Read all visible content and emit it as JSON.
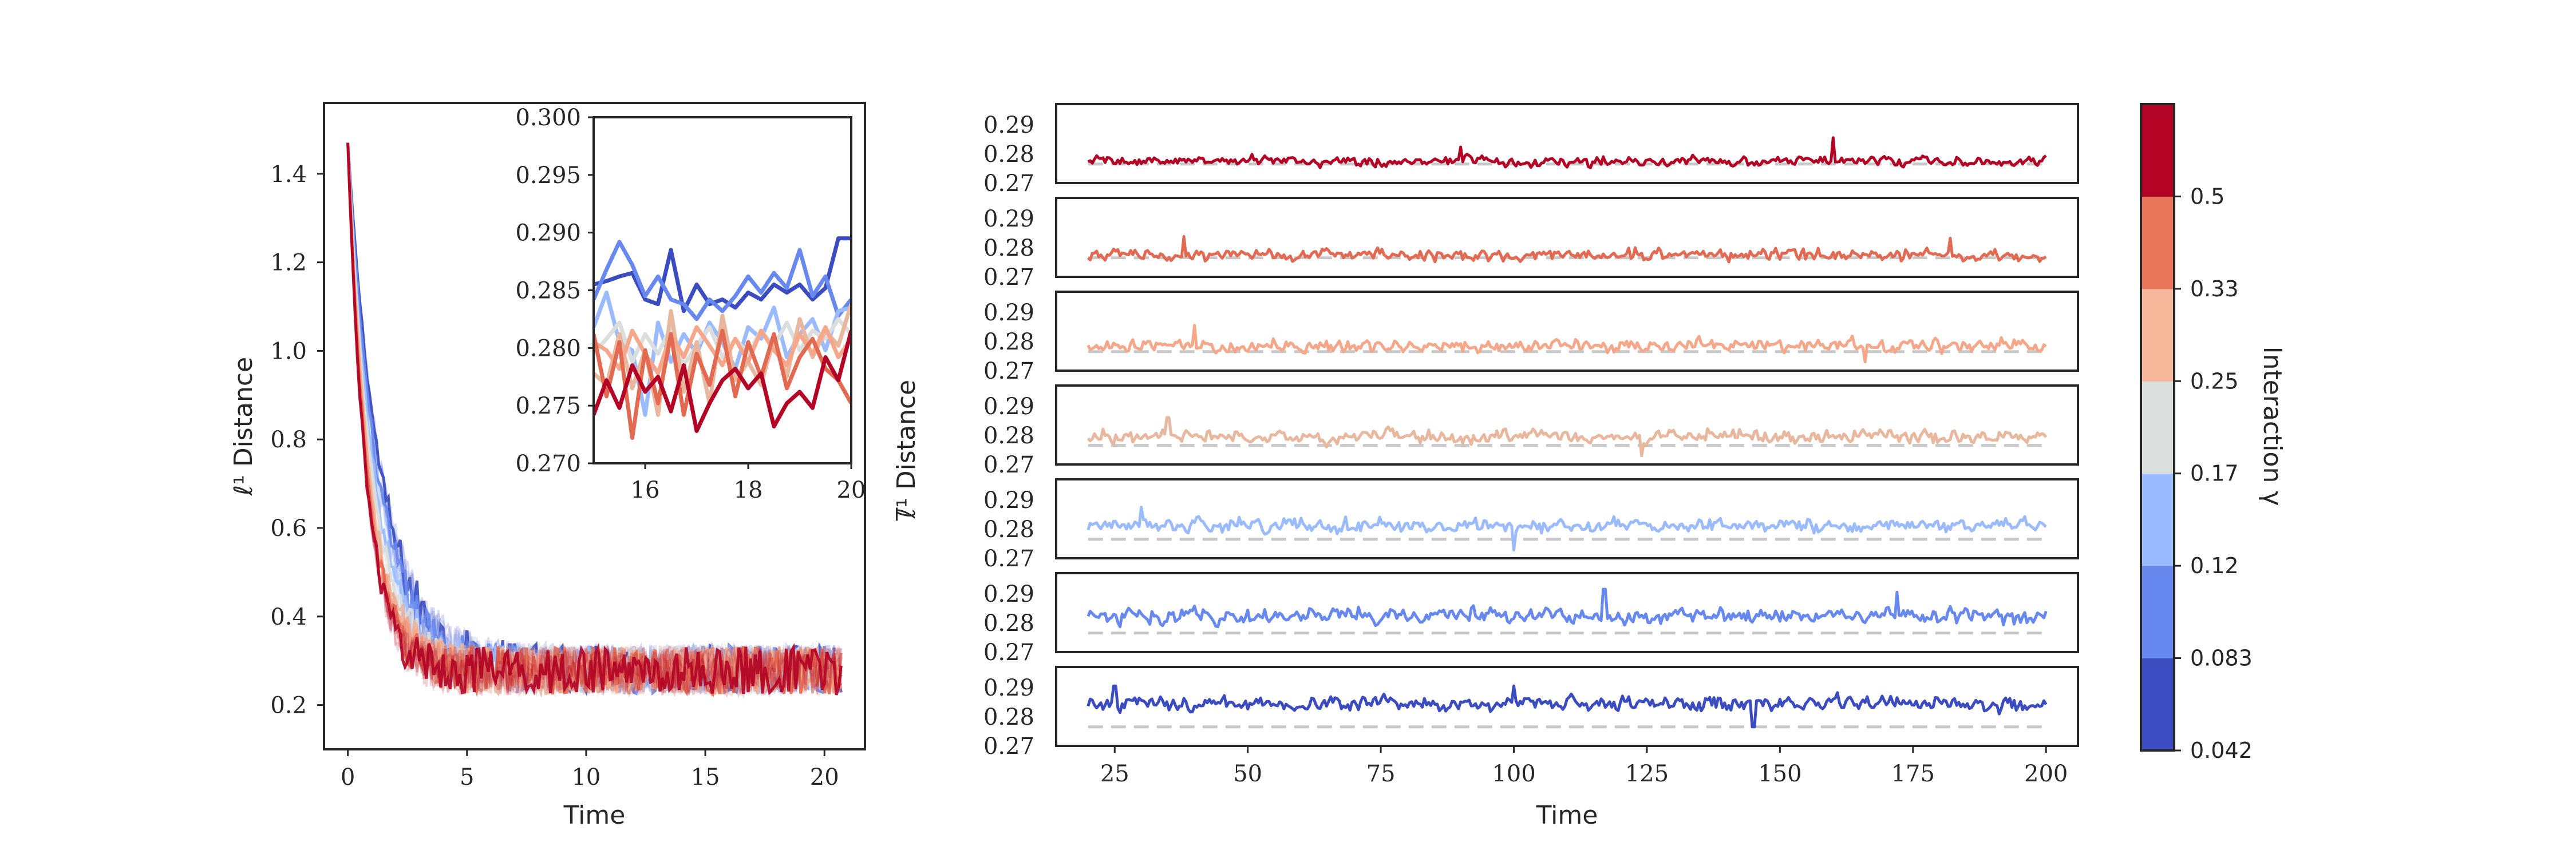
{
  "chart_data": [
    {
      "id": "main",
      "type": "line",
      "xlabel": "Time",
      "ylabel": "ℓ¹ Distance",
      "xlim": [
        -1,
        21.7
      ],
      "ylim": [
        0.1,
        1.56
      ],
      "xticks": [
        0,
        5,
        10,
        15,
        20
      ],
      "xtick_labels": [
        "0",
        "5",
        "10",
        "15",
        "20"
      ],
      "yticks": [
        0.2,
        0.4,
        0.6,
        0.8,
        1.0,
        1.2,
        1.4
      ],
      "ytick_labels": [
        "0.2",
        "0.4",
        "0.6",
        "0.8",
        "1.0",
        "1.2",
        "1.4"
      ],
      "grid": false,
      "series": [
        {
          "color": "#3b4cc0",
          "start": 1.47,
          "decay": 1.35,
          "plateau": 0.282,
          "t_end": 20.8
        },
        {
          "color": "#6788ee",
          "start": 1.47,
          "decay": 1.2,
          "plateau": 0.281,
          "t_end": 20.8
        },
        {
          "color": "#9abbff",
          "start": 1.47,
          "decay": 1.05,
          "plateau": 0.28,
          "t_end": 20.8
        },
        {
          "color": "#dcdddd",
          "start": 1.47,
          "decay": 0.95,
          "plateau": 0.279,
          "t_end": 20.8
        },
        {
          "color": "#e8b79d",
          "start": 1.47,
          "decay": 0.85,
          "plateau": 0.279,
          "t_end": 20.8
        },
        {
          "color": "#f7a789",
          "start": 1.47,
          "decay": 0.8,
          "plateau": 0.278,
          "t_end": 20.8
        },
        {
          "color": "#e26952",
          "start": 1.47,
          "decay": 0.75,
          "plateau": 0.278,
          "t_end": 20.8
        },
        {
          "color": "#b40426",
          "start": 1.47,
          "decay": 0.7,
          "plateau": 0.277,
          "t_end": 20.8
        }
      ]
    },
    {
      "id": "inset",
      "type": "line",
      "xlim": [
        15,
        20
      ],
      "ylim": [
        0.27,
        0.3
      ],
      "xticks": [
        16,
        18,
        20
      ],
      "xtick_labels": [
        "16",
        "18",
        "20"
      ],
      "yticks": [
        0.27,
        0.275,
        0.28,
        0.285,
        0.29,
        0.295,
        0.3
      ],
      "ytick_labels": [
        "0.270",
        "0.275",
        "0.280",
        "0.285",
        "0.290",
        "0.295",
        "0.300"
      ],
      "x": [
        15.0,
        15.25,
        15.5,
        15.75,
        16.0,
        16.25,
        16.5,
        16.75,
        17.0,
        17.25,
        17.5,
        17.75,
        18.0,
        18.25,
        18.5,
        18.75,
        19.0,
        19.25,
        19.5,
        19.75,
        20.0
      ],
      "series": [
        {
          "color": "#3b4cc0",
          "values": [
            0.2855,
            0.2858,
            0.2862,
            0.2865,
            0.2842,
            0.2838,
            0.2885,
            0.2832,
            0.2855,
            0.2838,
            0.2842,
            0.2835,
            0.2848,
            0.2842,
            0.2855,
            0.2848,
            0.2855,
            0.2842,
            0.2852,
            0.2895,
            0.2895
          ]
        },
        {
          "color": "#6788ee",
          "values": [
            0.2842,
            0.2868,
            0.2892,
            0.2872,
            0.2845,
            0.2862,
            0.2842,
            0.2838,
            0.2825,
            0.2842,
            0.2832,
            0.2845,
            0.2862,
            0.2848,
            0.2865,
            0.2852,
            0.2885,
            0.2845,
            0.2862,
            0.2828,
            0.2842
          ]
        },
        {
          "color": "#9abbff",
          "values": [
            0.2818,
            0.2848,
            0.2805,
            0.2798,
            0.2742,
            0.2822,
            0.2788,
            0.2812,
            0.2795,
            0.2822,
            0.2805,
            0.2782,
            0.2818,
            0.2808,
            0.2835,
            0.2792,
            0.2812,
            0.2825,
            0.2798,
            0.2832,
            0.2835
          ]
        },
        {
          "color": "#dcdddd",
          "values": [
            0.2795,
            0.2808,
            0.2822,
            0.2788,
            0.2812,
            0.2795,
            0.2818,
            0.2785,
            0.2802,
            0.2818,
            0.2792,
            0.2808,
            0.2795,
            0.2815,
            0.2802,
            0.2822,
            0.2798,
            0.2815,
            0.2808,
            0.2825,
            0.2812
          ]
        },
        {
          "color": "#e8b79d",
          "values": [
            0.2778,
            0.2768,
            0.2812,
            0.2765,
            0.2798,
            0.2742,
            0.2832,
            0.2762,
            0.2805,
            0.2752,
            0.2828,
            0.2772,
            0.2788,
            0.2768,
            0.2808,
            0.2775,
            0.2825,
            0.2792,
            0.2815,
            0.2802,
            0.2838
          ]
        },
        {
          "color": "#f7a789",
          "values": [
            0.2805,
            0.2798,
            0.2782,
            0.2815,
            0.2795,
            0.2778,
            0.2812,
            0.2792,
            0.2818,
            0.2802,
            0.2785,
            0.2808,
            0.2788,
            0.2815,
            0.2798,
            0.2785,
            0.2812,
            0.2795,
            0.2818,
            0.2792,
            0.2808
          ]
        },
        {
          "color": "#e26952",
          "values": [
            0.2812,
            0.2758,
            0.2805,
            0.2722,
            0.2798,
            0.2752,
            0.2812,
            0.2742,
            0.2795,
            0.2768,
            0.2815,
            0.2758,
            0.2805,
            0.2775,
            0.2812,
            0.2765,
            0.2792,
            0.2808,
            0.2782,
            0.2772,
            0.2752
          ]
        },
        {
          "color": "#b40426",
          "values": [
            0.2742,
            0.2772,
            0.2748,
            0.2785,
            0.2762,
            0.2775,
            0.2745,
            0.2785,
            0.2728,
            0.2752,
            0.2772,
            0.2782,
            0.2765,
            0.2778,
            0.2732,
            0.2752,
            0.2762,
            0.2748,
            0.2792,
            0.2772,
            0.2815
          ]
        }
      ]
    },
    {
      "id": "stack",
      "type": "line",
      "xlabel": "Time",
      "ylabel": "ℓ̅¹ Distance",
      "xlim": [
        14,
        206
      ],
      "ylim": [
        0.27,
        0.297
      ],
      "xticks": [
        25,
        50,
        75,
        100,
        125,
        150,
        175,
        200
      ],
      "xtick_labels": [
        "25",
        "50",
        "75",
        "100",
        "125",
        "150",
        "175",
        "200"
      ],
      "yticks": [
        0.27,
        0.28,
        0.29
      ],
      "ytick_labels": [
        "0.27",
        "0.28",
        "0.29"
      ],
      "dashed_reference": {
        "y": 0.2765,
        "color": "#c8c8c8"
      },
      "series": [
        {
          "color": "#b40426",
          "x_start": 20,
          "x_end": 200,
          "mean": 0.2775,
          "amplitude": 0.0012,
          "dashed": true,
          "spikes": [
            [
              160,
              0.2855
            ],
            [
              90,
              0.2823
            ]
          ]
        },
        {
          "color": "#e26952",
          "x_start": 20,
          "x_end": 200,
          "mean": 0.2775,
          "amplitude": 0.0014,
          "dashed": true,
          "spikes": [
            [
              182,
              0.2832
            ],
            [
              38,
              0.2838
            ]
          ]
        },
        {
          "color": "#f7a789",
          "x_start": 20,
          "x_end": 200,
          "mean": 0.2785,
          "amplitude": 0.0016,
          "dashed": true,
          "spikes": [
            [
              166,
              0.273
            ],
            [
              40,
              0.2855
            ]
          ]
        },
        {
          "color": "#e8b79d",
          "x_start": 20,
          "x_end": 200,
          "mean": 0.2795,
          "amplitude": 0.0017,
          "dashed": true,
          "spikes": [
            [
              124,
              0.273
            ],
            [
              35,
              0.286
            ]
          ]
        },
        {
          "color": "#9abbff",
          "x_start": 20,
          "x_end": 200,
          "mean": 0.2812,
          "amplitude": 0.0018,
          "dashed": true,
          "spikes": [
            [
              100,
              0.2728
            ],
            [
              30,
              0.2875
            ]
          ]
        },
        {
          "color": "#6788ee",
          "x_start": 20,
          "x_end": 200,
          "mean": 0.2823,
          "amplitude": 0.0019,
          "dashed": true,
          "spikes": [
            [
              117,
              0.2915
            ],
            [
              172,
              0.2905
            ]
          ]
        },
        {
          "color": "#3b4cc0",
          "x_start": 20,
          "x_end": 200,
          "mean": 0.2845,
          "amplitude": 0.0018,
          "dashed": true,
          "spikes": [
            [
              25,
              0.2905
            ],
            [
              145,
              0.2765
            ],
            [
              100,
              0.2905
            ]
          ]
        }
      ]
    },
    {
      "id": "colorbar",
      "type": "colorbar",
      "label": "Interaction γ",
      "colors": [
        "#3b4cc0",
        "#6788ee",
        "#9abbff",
        "#dcdddd",
        "#f7b79a",
        "#e8765a",
        "#b40426"
      ],
      "tick_labels": [
        "0.042",
        "0.083",
        "0.12",
        "0.17",
        "0.25",
        "0.33",
        "0.5"
      ]
    }
  ]
}
